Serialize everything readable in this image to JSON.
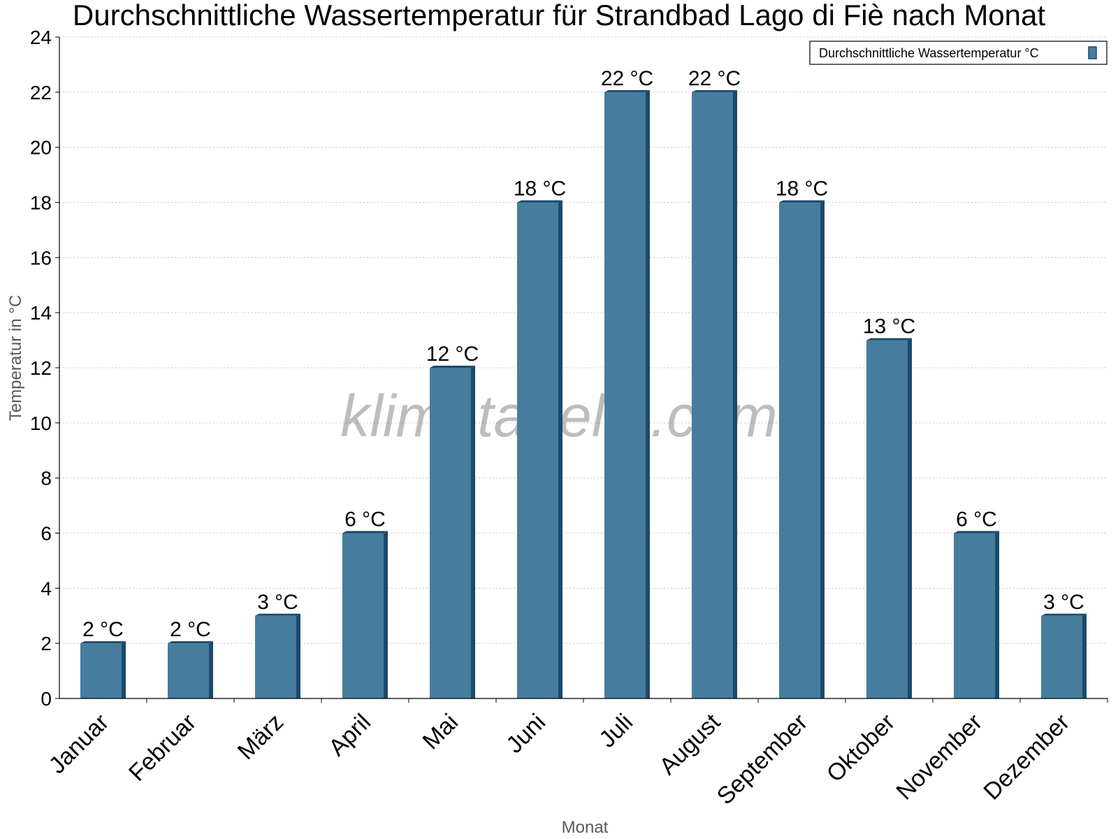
{
  "chart_data": {
    "type": "bar",
    "title": "Durchschnittliche Wassertemperatur für Strandbad Lago di Fiè nach Monat",
    "xlabel": "Monat",
    "ylabel": "Temperatur in °C",
    "ylim": [
      0,
      24
    ],
    "yticks": [
      0,
      2,
      4,
      6,
      8,
      10,
      12,
      14,
      16,
      18,
      20,
      22,
      24
    ],
    "grid": true,
    "legend_position": "top-right",
    "categories": [
      "Januar",
      "Februar",
      "März",
      "April",
      "Mai",
      "Juni",
      "Juli",
      "August",
      "September",
      "Oktober",
      "November",
      "Dezember"
    ],
    "series": [
      {
        "name": "Durchschnittliche Wassertemperatur °C",
        "values": [
          2,
          2,
          3,
          6,
          12,
          18,
          22,
          22,
          18,
          13,
          6,
          3
        ],
        "labels": [
          "2 °C",
          "2 °C",
          "3 °C",
          "6 °C",
          "12 °C",
          "18 °C",
          "22 °C",
          "22 °C",
          "18 °C",
          "13 °C",
          "6 °C",
          "3 °C"
        ],
        "color": "#467c9d",
        "edge_color": "#1b4a6b"
      }
    ],
    "watermark": "klimatabelle.com"
  }
}
